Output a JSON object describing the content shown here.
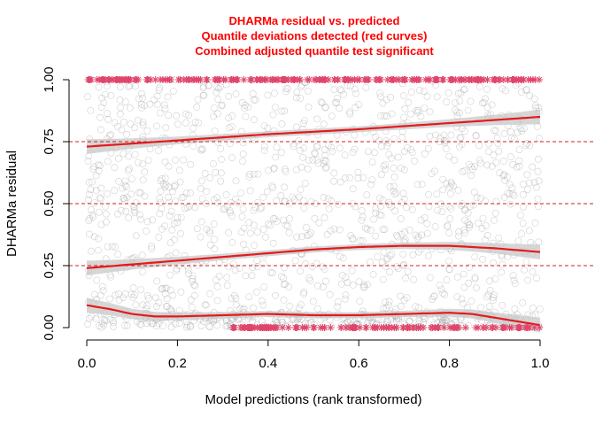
{
  "chart_data": {
    "type": "scatter",
    "title_lines": [
      "DHARMa residual vs. predicted",
      "Quantile deviations detected (red curves)",
      "Combined adjusted quantile test significant"
    ],
    "xlabel": "Model predictions (rank transformed)",
    "ylabel": "DHARMa residual",
    "xlim": [
      0.0,
      1.0
    ],
    "ylim": [
      0.0,
      1.0
    ],
    "x_ticks": [
      "0.0",
      "0.2",
      "0.4",
      "0.6",
      "0.8",
      "1.0"
    ],
    "y_ticks": [
      "0.00",
      "0.25",
      "0.50",
      "0.75",
      "1.00"
    ],
    "reference_lines": [
      0.25,
      0.5,
      0.75
    ],
    "quantile_curves": [
      {
        "quantile": 0.75,
        "x": [
          0.0,
          0.2,
          0.4,
          0.6,
          0.8,
          1.0
        ],
        "y": [
          0.73,
          0.755,
          0.78,
          0.8,
          0.825,
          0.85
        ]
      },
      {
        "quantile": 0.5,
        "x": [
          0.0,
          0.1,
          0.2,
          0.3,
          0.4,
          0.5,
          0.6,
          0.7,
          0.8,
          0.9,
          1.0
        ],
        "y": [
          0.24,
          0.255,
          0.27,
          0.285,
          0.3,
          0.315,
          0.325,
          0.33,
          0.33,
          0.32,
          0.305
        ]
      },
      {
        "quantile": 0.25,
        "x": [
          0.0,
          0.05,
          0.1,
          0.15,
          0.2,
          0.3,
          0.4,
          0.5,
          0.6,
          0.7,
          0.8,
          0.85,
          0.9,
          1.0
        ],
        "y": [
          0.09,
          0.075,
          0.055,
          0.045,
          0.045,
          0.05,
          0.055,
          0.05,
          0.05,
          0.055,
          0.06,
          0.055,
          0.04,
          0.01
        ]
      }
    ],
    "outlier_markers": "asterisks at residual 0 and 1",
    "colors": {
      "points": "#9a9a9a",
      "curves": "#e31a1c",
      "bands": "#c8c8c8",
      "reference_lines": "#d11f1f",
      "outliers": "#e0456a",
      "title": "#ff0000"
    }
  }
}
